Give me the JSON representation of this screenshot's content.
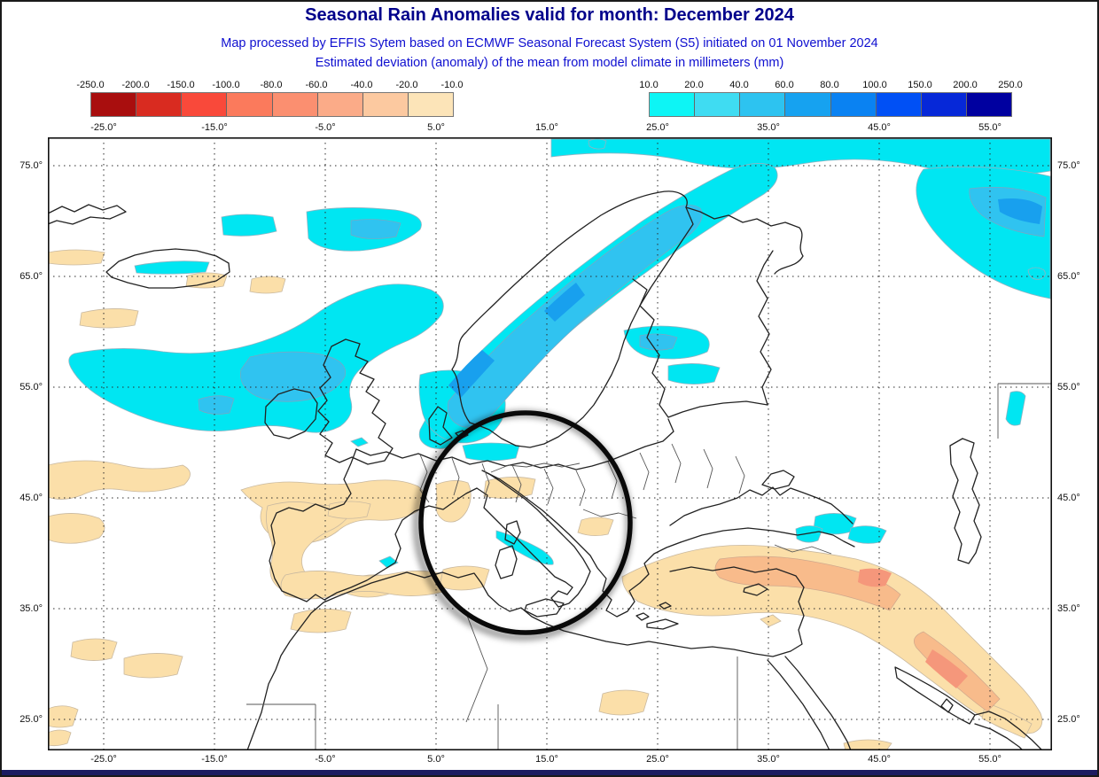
{
  "header": {
    "title": "Seasonal Rain Anomalies valid for month: December 2024",
    "subtitle1": "Map processed by EFFIS Sytem based on ECMWF Seasonal Forecast System (S5) initiated on 01 November 2024",
    "subtitle2": "Estimated deviation (anomaly) of the mean from model climate in millimeters (mm)"
  },
  "colors": {
    "title": "#00008b",
    "subtitle": "#0f0fd0",
    "footer_bar": "#1c1c60",
    "anomaly": {
      "cyan_10": "#00e6f2",
      "blue_mid_20": "#30c3f0",
      "blue_deep_40": "#18a0ee",
      "tan_neg10": "#fbdfa9",
      "orange_neg40": "#f8bb8b",
      "salmon_neg60": "#f5977b"
    }
  },
  "legend_negative": {
    "boundary_labels": [
      "-250.0",
      "-200.0",
      "-150.0",
      "-100.0",
      "-80.0",
      "-60.0",
      "-40.0",
      "-20.0",
      "-10.0"
    ],
    "cell_colors": [
      "#a90e0e",
      "#d92b20",
      "#f9493a",
      "#fb7a5c",
      "#fb8f70",
      "#fbab88",
      "#fcc9a0",
      "#fce4b8"
    ]
  },
  "legend_positive": {
    "boundary_labels": [
      "10.0",
      "20.0",
      "40.0",
      "60.0",
      "80.0",
      "100.0",
      "150.0",
      "200.0",
      "250.0"
    ],
    "cell_colors": [
      "#0df5f5",
      "#3fdcf2",
      "#2dc3f0",
      "#16a2f0",
      "#0a82f2",
      "#0050f5",
      "#0628d8",
      "#0000a0"
    ]
  },
  "map": {
    "lon_ticks": [
      "-25.0°",
      "-15.0°",
      "-5.0°",
      "5.0°",
      "15.0°",
      "25.0°",
      "35.0°",
      "45.0°",
      "55.0°"
    ],
    "lat_ticks": [
      "75.0°",
      "65.0°",
      "55.0°",
      "45.0°",
      "35.0°",
      "25.0°"
    ],
    "annotation": "black ellipse highlighting Italy and the central Mediterranean"
  },
  "chart_data": {
    "type": "heatmap",
    "title": "Seasonal Rain Anomalies valid for month: December 2024",
    "units": "mm",
    "negative_scale_mm": [
      -250,
      -200,
      -150,
      -100,
      -80,
      -60,
      -40,
      -20,
      -10
    ],
    "positive_scale_mm": [
      10,
      20,
      40,
      60,
      80,
      100,
      150,
      200,
      250
    ],
    "lon_range_deg": [
      -25.0,
      55.0
    ],
    "lat_range_deg": [
      25.0,
      75.0
    ],
    "wet_anomaly_regions": [
      "Norwegian coast (+20 to +60)",
      "North Atlantic west of Scotland/Ireland (+10 to +20)",
      "Arctic coast and Novaya Zemlya area (+10 to +40)",
      "Baltic coast slivers (+10)",
      "Tyrrhenian coast of Italy (+10)",
      "Caucasus spots (+10 to +20)"
    ],
    "dry_anomaly_regions": [
      "Turkey through Zagros to Persian Gulf (-10 to -60)",
      "Western Iberia and Morocco/Algeria coast (-10 to -20)",
      "Subtropical Atlantic blobs (-10)",
      "Po valley and NW Italy (-10)"
    ],
    "highlight": "black ellipse over Italy / central Mediterranean"
  }
}
